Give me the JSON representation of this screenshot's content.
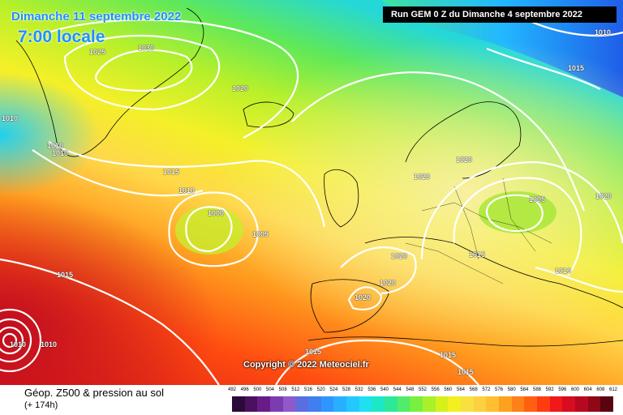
{
  "header": {
    "date": "Dimanche 11 septembre 2022",
    "local_time": "7:00 locale",
    "run": "Run GEM 0 Z du Dimanche 4 septembre 2022"
  },
  "copyright": "Copyright © 2022 Meteociel.fr",
  "isobars": [
    {
      "id": "iso-1030",
      "label": "1030"
    },
    {
      "id": "iso-1025",
      "label": "1025"
    },
    {
      "id": "iso-1020a",
      "label": "1020"
    },
    {
      "id": "iso-1010a",
      "label": "1010"
    },
    {
      "id": "iso-1015a",
      "label": "1015"
    },
    {
      "id": "iso-1010b",
      "label": "1010"
    },
    {
      "id": "iso-1000",
      "label": "1000"
    },
    {
      "id": "iso-1005a",
      "label": "1005"
    },
    {
      "id": "iso-1015b",
      "label": "1015"
    },
    {
      "id": "iso-1020b",
      "label": "1020"
    },
    {
      "id": "iso-1020c",
      "label": "1020"
    },
    {
      "id": "iso-1020d",
      "label": "1020"
    },
    {
      "id": "iso-1020e",
      "label": "1020"
    },
    {
      "id": "iso-1020f",
      "label": "1020"
    },
    {
      "id": "iso-1005b",
      "label": "1005"
    },
    {
      "id": "iso-1015c",
      "label": "1015"
    },
    {
      "id": "iso-1010c",
      "label": "1010"
    },
    {
      "id": "iso-1020g",
      "label": "1020"
    },
    {
      "id": "iso-1015d",
      "label": "1015"
    },
    {
      "id": "iso-1010d",
      "label": "1010"
    },
    {
      "id": "iso-1015e",
      "label": "1015"
    },
    {
      "id": "iso-1015f",
      "label": "1015"
    },
    {
      "id": "iso-1015g",
      "label": "1015"
    },
    {
      "id": "iso-1010e",
      "label": "1010"
    },
    {
      "id": "iso-1010f",
      "label": "1010"
    },
    {
      "id": "iso-1010g",
      "label": "1010"
    },
    {
      "id": "iso-1010h",
      "label": "1010"
    }
  ],
  "legend": {
    "title": "Géop. Z500 & pression au sol",
    "forecast_hour": "(+ 174h)",
    "ticks": [
      "492",
      "496",
      "500",
      "504",
      "508",
      "512",
      "516",
      "520",
      "524",
      "528",
      "532",
      "536",
      "540",
      "544",
      "548",
      "552",
      "556",
      "560",
      "564",
      "568",
      "572",
      "576",
      "580",
      "584",
      "588",
      "592",
      "596",
      "600",
      "604",
      "608",
      "612"
    ],
    "colors": [
      "#2c0a3a",
      "#4b1160",
      "#6a1b8a",
      "#7d3bb0",
      "#9159c8",
      "#5a6ee0",
      "#3f7ff0",
      "#2f95ff",
      "#27b0ff",
      "#22c8ff",
      "#1ee0f0",
      "#1ce8c8",
      "#2ee89a",
      "#50ec6a",
      "#78f040",
      "#a8f028",
      "#d6f01c",
      "#f2f020",
      "#f8e040",
      "#fcd040",
      "#ffbf30",
      "#ffa020",
      "#ff8018",
      "#ff6010",
      "#ff3c10",
      "#f01818",
      "#d80c20",
      "#b80820",
      "#900818",
      "#5a0410"
    ]
  }
}
